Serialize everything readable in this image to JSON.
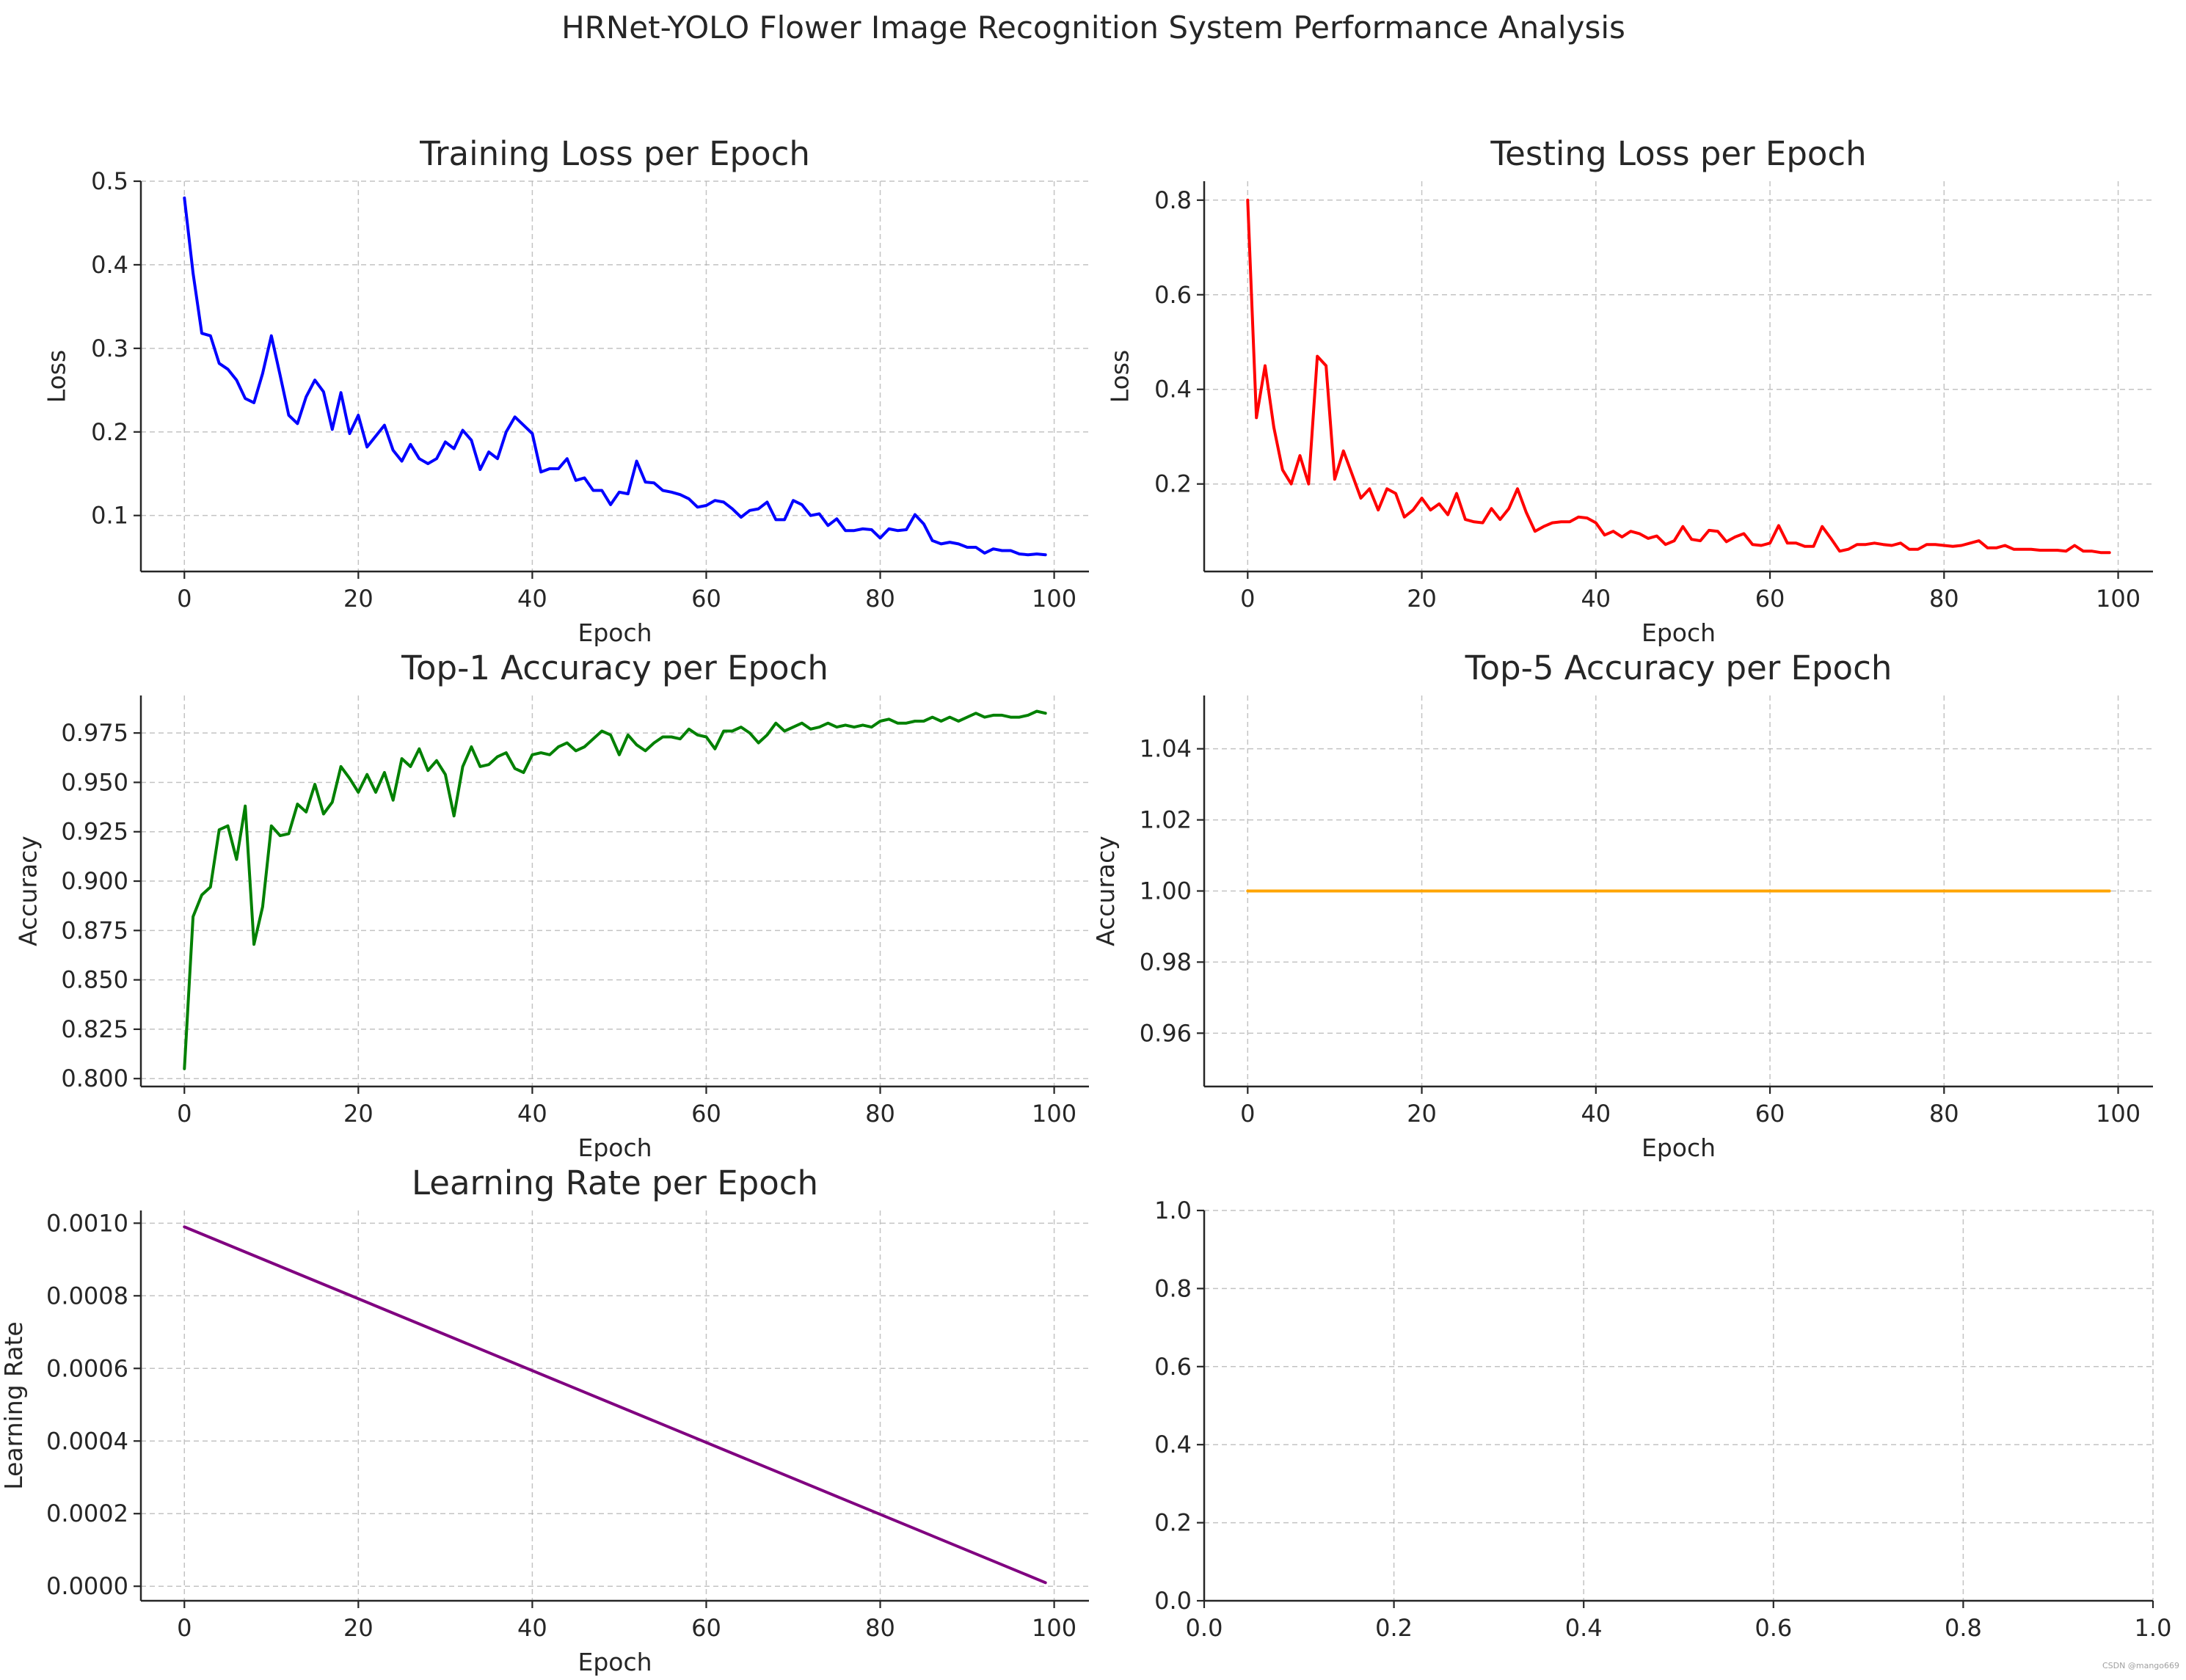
{
  "figure": {
    "title": "HRNet-YOLO Flower Image Recognition System Performance Analysis",
    "watermark": "CSDN @mango669"
  },
  "chart_data": [
    {
      "id": "training-loss",
      "type": "line",
      "title": "Training Loss per Epoch",
      "xlabel": "Epoch",
      "ylabel": "Loss",
      "xlim": [
        -5,
        104
      ],
      "ylim": [
        0.033,
        0.5
      ],
      "xticks": [
        0,
        20,
        40,
        60,
        80,
        100
      ],
      "xtick_labels": [
        "0",
        "20",
        "40",
        "60",
        "80",
        "100"
      ],
      "yticks": [
        0.1,
        0.2,
        0.3,
        0.4,
        0.5
      ],
      "ytick_labels": [
        "0.1",
        "0.2",
        "0.3",
        "0.4",
        "0.5"
      ],
      "grid": true,
      "color": "#0000ff",
      "series": [
        {
          "x": [
            0,
            1,
            2,
            3,
            4,
            5,
            6,
            7,
            8,
            9,
            10,
            11,
            12,
            13,
            14,
            15,
            16,
            17,
            18,
            19,
            20,
            21,
            22,
            23,
            24,
            25,
            26,
            27,
            28,
            29,
            30,
            31,
            32,
            33,
            34,
            35,
            36,
            37,
            38,
            39,
            40,
            41,
            42,
            43,
            44,
            45,
            46,
            47,
            48,
            49,
            50,
            51,
            52,
            53,
            54,
            55,
            56,
            57,
            58,
            59,
            60,
            61,
            62,
            63,
            64,
            65,
            66,
            67,
            68,
            69,
            70,
            71,
            72,
            73,
            74,
            75,
            76,
            77,
            78,
            79,
            80,
            81,
            82,
            83,
            84,
            85,
            86,
            87,
            88,
            89,
            90,
            91,
            92,
            93,
            94,
            95,
            96,
            97,
            98,
            99
          ],
          "y": [
            0.48,
            0.39,
            0.318,
            0.315,
            0.282,
            0.275,
            0.262,
            0.24,
            0.235,
            0.27,
            0.315,
            0.268,
            0.22,
            0.21,
            0.242,
            0.262,
            0.248,
            0.203,
            0.247,
            0.198,
            0.22,
            0.182,
            0.195,
            0.208,
            0.178,
            0.165,
            0.185,
            0.168,
            0.162,
            0.168,
            0.188,
            0.18,
            0.202,
            0.19,
            0.155,
            0.176,
            0.168,
            0.2,
            0.218,
            0.208,
            0.198,
            0.152,
            0.156,
            0.156,
            0.168,
            0.142,
            0.145,
            0.13,
            0.13,
            0.113,
            0.128,
            0.126,
            0.165,
            0.14,
            0.139,
            0.13,
            0.128,
            0.125,
            0.12,
            0.11,
            0.112,
            0.118,
            0.116,
            0.108,
            0.098,
            0.106,
            0.108,
            0.116,
            0.095,
            0.095,
            0.118,
            0.113,
            0.1,
            0.102,
            0.088,
            0.096,
            0.082,
            0.082,
            0.084,
            0.083,
            0.073,
            0.084,
            0.082,
            0.083,
            0.101,
            0.09,
            0.07,
            0.066,
            0.068,
            0.066,
            0.062,
            0.062,
            0.055,
            0.06,
            0.058,
            0.058,
            0.054,
            0.053,
            0.054,
            0.053
          ]
        }
      ]
    },
    {
      "id": "testing-loss",
      "type": "line",
      "title": "Testing Loss per Epoch",
      "xlabel": "Epoch",
      "ylabel": "Loss",
      "xlim": [
        -5,
        104
      ],
      "ylim": [
        0.015,
        0.84
      ],
      "xticks": [
        0,
        20,
        40,
        60,
        80,
        100
      ],
      "xtick_labels": [
        "0",
        "20",
        "40",
        "60",
        "80",
        "100"
      ],
      "yticks": [
        0.2,
        0.4,
        0.6,
        0.8
      ],
      "ytick_labels": [
        "0.2",
        "0.4",
        "0.6",
        "0.8"
      ],
      "grid": true,
      "color": "#ff0000",
      "series": [
        {
          "x": [
            0,
            1,
            2,
            3,
            4,
            5,
            6,
            7,
            8,
            9,
            10,
            11,
            12,
            13,
            14,
            15,
            16,
            17,
            18,
            19,
            20,
            21,
            22,
            23,
            24,
            25,
            26,
            27,
            28,
            29,
            30,
            31,
            32,
            33,
            34,
            35,
            36,
            37,
            38,
            39,
            40,
            41,
            42,
            43,
            44,
            45,
            46,
            47,
            48,
            49,
            50,
            51,
            52,
            53,
            54,
            55,
            56,
            57,
            58,
            59,
            60,
            61,
            62,
            63,
            64,
            65,
            66,
            67,
            68,
            69,
            70,
            71,
            72,
            73,
            74,
            75,
            76,
            77,
            78,
            79,
            80,
            81,
            82,
            83,
            84,
            85,
            86,
            87,
            88,
            89,
            90,
            91,
            92,
            93,
            94,
            95,
            96,
            97,
            98,
            99
          ],
          "y": [
            0.8,
            0.34,
            0.45,
            0.32,
            0.23,
            0.2,
            0.26,
            0.2,
            0.47,
            0.45,
            0.21,
            0.27,
            0.22,
            0.17,
            0.19,
            0.145,
            0.19,
            0.18,
            0.13,
            0.145,
            0.17,
            0.145,
            0.158,
            0.135,
            0.18,
            0.125,
            0.12,
            0.118,
            0.148,
            0.125,
            0.148,
            0.19,
            0.14,
            0.1,
            0.11,
            0.118,
            0.12,
            0.12,
            0.13,
            0.128,
            0.118,
            0.092,
            0.1,
            0.088,
            0.1,
            0.095,
            0.085,
            0.09,
            0.072,
            0.08,
            0.11,
            0.083,
            0.08,
            0.102,
            0.1,
            0.078,
            0.088,
            0.095,
            0.072,
            0.07,
            0.075,
            0.112,
            0.075,
            0.075,
            0.068,
            0.068,
            0.11,
            0.085,
            0.058,
            0.062,
            0.072,
            0.072,
            0.075,
            0.072,
            0.07,
            0.075,
            0.062,
            0.062,
            0.072,
            0.072,
            0.07,
            0.068,
            0.07,
            0.075,
            0.08,
            0.065,
            0.065,
            0.07,
            0.062,
            0.062,
            0.062,
            0.06,
            0.06,
            0.06,
            0.058,
            0.07,
            0.058,
            0.058,
            0.055,
            0.055
          ]
        }
      ]
    },
    {
      "id": "top1-accuracy",
      "type": "line",
      "title": "Top-1 Accuracy per Epoch",
      "xlabel": "Epoch",
      "ylabel": "Accuracy",
      "xlim": [
        -5,
        104
      ],
      "ylim": [
        0.796,
        0.994
      ],
      "xticks": [
        0,
        20,
        40,
        60,
        80,
        100
      ],
      "xtick_labels": [
        "0",
        "20",
        "40",
        "60",
        "80",
        "100"
      ],
      "yticks": [
        0.8,
        0.825,
        0.85,
        0.875,
        0.9,
        0.925,
        0.95,
        0.975
      ],
      "ytick_labels": [
        "0.800",
        "0.825",
        "0.850",
        "0.875",
        "0.900",
        "0.925",
        "0.950",
        "0.975"
      ],
      "grid": true,
      "color": "#008000",
      "series": [
        {
          "x": [
            0,
            1,
            2,
            3,
            4,
            5,
            6,
            7,
            8,
            9,
            10,
            11,
            12,
            13,
            14,
            15,
            16,
            17,
            18,
            19,
            20,
            21,
            22,
            23,
            24,
            25,
            26,
            27,
            28,
            29,
            30,
            31,
            32,
            33,
            34,
            35,
            36,
            37,
            38,
            39,
            40,
            41,
            42,
            43,
            44,
            45,
            46,
            47,
            48,
            49,
            50,
            51,
            52,
            53,
            54,
            55,
            56,
            57,
            58,
            59,
            60,
            61,
            62,
            63,
            64,
            65,
            66,
            67,
            68,
            69,
            70,
            71,
            72,
            73,
            74,
            75,
            76,
            77,
            78,
            79,
            80,
            81,
            82,
            83,
            84,
            85,
            86,
            87,
            88,
            89,
            90,
            91,
            92,
            93,
            94,
            95,
            96,
            97,
            98,
            99
          ],
          "y": [
            0.805,
            0.882,
            0.893,
            0.897,
            0.926,
            0.928,
            0.911,
            0.938,
            0.868,
            0.887,
            0.928,
            0.923,
            0.924,
            0.939,
            0.935,
            0.949,
            0.934,
            0.94,
            0.958,
            0.952,
            0.945,
            0.954,
            0.945,
            0.955,
            0.941,
            0.962,
            0.958,
            0.967,
            0.956,
            0.961,
            0.954,
            0.933,
            0.958,
            0.968,
            0.958,
            0.959,
            0.963,
            0.965,
            0.957,
            0.955,
            0.964,
            0.965,
            0.964,
            0.968,
            0.97,
            0.966,
            0.968,
            0.972,
            0.976,
            0.974,
            0.964,
            0.974,
            0.969,
            0.966,
            0.97,
            0.973,
            0.973,
            0.972,
            0.977,
            0.974,
            0.973,
            0.967,
            0.976,
            0.976,
            0.978,
            0.975,
            0.97,
            0.974,
            0.98,
            0.976,
            0.978,
            0.98,
            0.977,
            0.978,
            0.98,
            0.978,
            0.979,
            0.978,
            0.979,
            0.978,
            0.981,
            0.982,
            0.98,
            0.98,
            0.981,
            0.981,
            0.983,
            0.981,
            0.983,
            0.981,
            0.983,
            0.985,
            0.983,
            0.984,
            0.984,
            0.983,
            0.983,
            0.984,
            0.986,
            0.985
          ]
        }
      ]
    },
    {
      "id": "top5-accuracy",
      "type": "line",
      "title": "Top-5 Accuracy per Epoch",
      "xlabel": "Epoch",
      "ylabel": "Accuracy",
      "xlim": [
        -5,
        104
      ],
      "ylim": [
        0.945,
        1.055
      ],
      "xticks": [
        0,
        20,
        40,
        60,
        80,
        100
      ],
      "xtick_labels": [
        "0",
        "20",
        "40",
        "60",
        "80",
        "100"
      ],
      "yticks": [
        0.96,
        0.98,
        1.0,
        1.02,
        1.04
      ],
      "ytick_labels": [
        "0.96",
        "0.98",
        "1.00",
        "1.02",
        "1.04"
      ],
      "grid": true,
      "color": "#ffa500",
      "series": [
        {
          "x": [
            0,
            99
          ],
          "y": [
            1.0,
            1.0
          ]
        }
      ]
    },
    {
      "id": "learning-rate",
      "type": "line",
      "title": "Learning Rate per Epoch",
      "xlabel": "Epoch",
      "ylabel": "Learning Rate",
      "xlim": [
        -5,
        104
      ],
      "ylim": [
        -4e-05,
        0.001035
      ],
      "xticks": [
        0,
        20,
        40,
        60,
        80,
        100
      ],
      "xtick_labels": [
        "0",
        "20",
        "40",
        "60",
        "80",
        "100"
      ],
      "yticks": [
        0.0,
        0.0002,
        0.0004,
        0.0006,
        0.0008,
        0.001
      ],
      "ytick_labels": [
        "0.0000",
        "0.0002",
        "0.0004",
        "0.0006",
        "0.0008",
        "0.0010"
      ],
      "grid": true,
      "color": "#800080",
      "series": [
        {
          "x": [
            0,
            99
          ],
          "y": [
            0.00099,
            1e-05
          ]
        }
      ]
    },
    {
      "id": "empty-axes",
      "type": "line",
      "title": "",
      "xlabel": "",
      "ylabel": "",
      "xlim": [
        0,
        1
      ],
      "ylim": [
        0,
        1
      ],
      "xticks": [
        0,
        0.2,
        0.4,
        0.6,
        0.8,
        1.0
      ],
      "xtick_labels": [
        "0.0",
        "0.2",
        "0.4",
        "0.6",
        "0.8",
        "1.0"
      ],
      "yticks": [
        0,
        0.2,
        0.4,
        0.6,
        0.8,
        1.0
      ],
      "ytick_labels": [
        "0.0",
        "0.2",
        "0.4",
        "0.6",
        "0.8",
        "1.0"
      ],
      "grid": true,
      "color": "",
      "series": []
    }
  ]
}
